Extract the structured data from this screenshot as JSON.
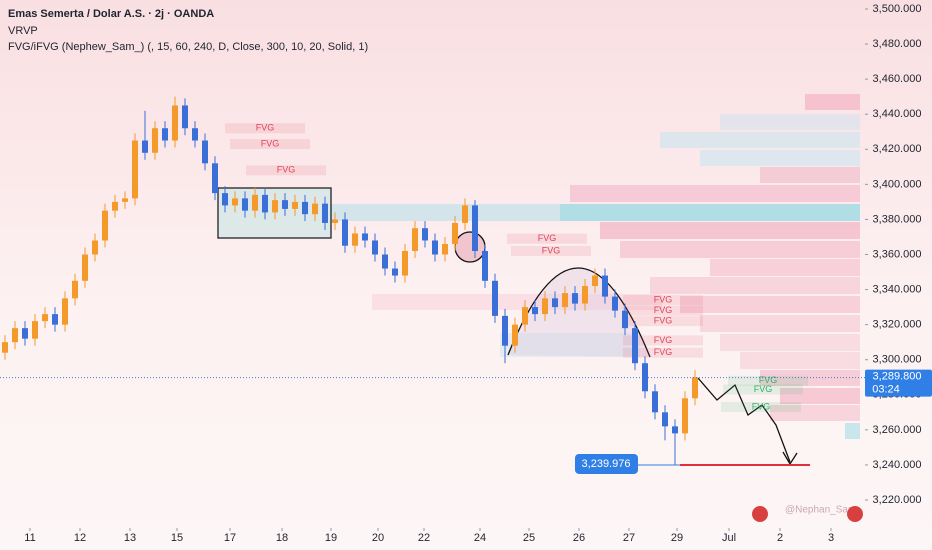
{
  "chart_data": {
    "type": "candlestick",
    "title": "Emas Semerta / Dolar A.S. · 2j · OANDA",
    "indicators": [
      "VRVP",
      "FVG/iFVG (Nephew_Sam_) (, 15, 60, 240, D, Close, 300, 10, 20, Solid, 1)"
    ],
    "up_color": "#f39a2b",
    "down_color": "#3a6fd8",
    "open": [
      3304,
      3310,
      3318,
      3312,
      3322,
      3326,
      3320,
      3335,
      3345,
      3360,
      3368,
      3385,
      3390,
      3392,
      3425,
      3418,
      3432,
      3425,
      3445,
      3432,
      3425,
      3412,
      3395,
      3388,
      3392,
      3385,
      3394,
      3384,
      3391,
      3386,
      3390,
      3383,
      3389,
      3378,
      3380,
      3365,
      3372,
      3368,
      3360,
      3352,
      3348,
      3362,
      3375,
      3368,
      3360,
      3366,
      3378,
      3388,
      3362,
      3345,
      3325,
      3308,
      3320,
      3330,
      3326,
      3335,
      3330,
      3338,
      3332,
      3342,
      3348,
      3336,
      3328,
      3318,
      3298,
      3282,
      3270,
      3262,
      3258,
      3278
    ],
    "high": [
      3314,
      3322,
      3322,
      3326,
      3330,
      3330,
      3339,
      3349,
      3364,
      3372,
      3389,
      3394,
      3396,
      3429,
      3442,
      3436,
      3436,
      3450,
      3449,
      3436,
      3429,
      3416,
      3399,
      3396,
      3396,
      3398,
      3398,
      3395,
      3395,
      3394,
      3394,
      3393,
      3393,
      3384,
      3384,
      3376,
      3376,
      3372,
      3364,
      3356,
      3366,
      3379,
      3379,
      3372,
      3370,
      3382,
      3392,
      3391,
      3366,
      3349,
      3329,
      3324,
      3334,
      3334,
      3339,
      3339,
      3342,
      3342,
      3346,
      3352,
      3352,
      3340,
      3332,
      3322,
      3302,
      3286,
      3274,
      3266,
      3282,
      3294
    ],
    "low": [
      3300,
      3306,
      3308,
      3308,
      3318,
      3316,
      3316,
      3331,
      3341,
      3356,
      3364,
      3381,
      3386,
      3388,
      3414,
      3414,
      3421,
      3421,
      3428,
      3421,
      3408,
      3391,
      3384,
      3384,
      3381,
      3381,
      3380,
      3380,
      3382,
      3382,
      3379,
      3379,
      3374,
      3374,
      3361,
      3361,
      3364,
      3356,
      3348,
      3344,
      3344,
      3358,
      3364,
      3356,
      3356,
      3362,
      3374,
      3358,
      3341,
      3321,
      3298,
      3304,
      3316,
      3322,
      3322,
      3326,
      3326,
      3328,
      3328,
      3338,
      3332,
      3324,
      3314,
      3294,
      3278,
      3266,
      3254,
      3240,
      3254,
      3274
    ],
    "close": [
      3310,
      3318,
      3312,
      3322,
      3326,
      3320,
      3335,
      3345,
      3360,
      3368,
      3385,
      3390,
      3392,
      3425,
      3418,
      3432,
      3425,
      3445,
      3432,
      3425,
      3412,
      3395,
      3388,
      3392,
      3385,
      3394,
      3384,
      3391,
      3386,
      3390,
      3383,
      3389,
      3378,
      3380,
      3365,
      3372,
      3368,
      3360,
      3352,
      3348,
      3362,
      3375,
      3368,
      3360,
      3366,
      3378,
      3388,
      3362,
      3345,
      3325,
      3308,
      3320,
      3330,
      3326,
      3335,
      3330,
      3338,
      3332,
      3342,
      3348,
      3336,
      3328,
      3318,
      3298,
      3282,
      3270,
      3262,
      3258,
      3278,
      3290
    ],
    "xlim": [
      0,
      86.5
    ],
    "xticks": [
      {
        "value": 3,
        "label": "11"
      },
      {
        "value": 8,
        "label": "12"
      },
      {
        "value": 13,
        "label": "13"
      },
      {
        "value": 17.7,
        "label": "15"
      },
      {
        "value": 23,
        "label": "17"
      },
      {
        "value": 28.2,
        "label": "18"
      },
      {
        "value": 33.1,
        "label": "19"
      },
      {
        "value": 37.8,
        "label": "20"
      },
      {
        "value": 42.4,
        "label": "22"
      },
      {
        "value": 48,
        "label": "24"
      },
      {
        "value": 52.9,
        "label": "25"
      },
      {
        "value": 57.9,
        "label": "26"
      },
      {
        "value": 62.9,
        "label": "27"
      },
      {
        "value": 67.7,
        "label": "29"
      },
      {
        "value": 72.9,
        "label": "Jul"
      },
      {
        "value": 78,
        "label": "2"
      },
      {
        "value": 83.1,
        "label": "3"
      }
    ],
    "ylim": [
      3220,
      3500
    ],
    "yticks": [
      {
        "value": 3220,
        "label": "3,220.000"
      },
      {
        "value": 3240,
        "label": "3,240.000"
      },
      {
        "value": 3260,
        "label": "3,260.000"
      },
      {
        "value": 3280,
        "label": "3,280.000"
      },
      {
        "value": 3300,
        "label": "3,300.000"
      },
      {
        "value": 3320,
        "label": "3,320.000"
      },
      {
        "value": 3340,
        "label": "3,340.000"
      },
      {
        "value": 3360,
        "label": "3,360.000"
      },
      {
        "value": 3380,
        "label": "3,380.000"
      },
      {
        "value": 3400,
        "label": "3,400.000"
      },
      {
        "value": 3420,
        "label": "3,420.000"
      },
      {
        "value": 3440,
        "label": "3,440.000"
      },
      {
        "value": 3460,
        "label": "3,460.000"
      },
      {
        "value": 3480,
        "label": "3,480.000"
      },
      {
        "value": 3500,
        "label": "3,500.000"
      }
    ],
    "last_price": {
      "value": 3289.8,
      "label": "3,289.800",
      "countdown": "03:24"
    },
    "low_marker": {
      "value": 3239.976,
      "label": "3,239.976"
    },
    "annotations": [
      {
        "text": "FVG",
        "x": 26.5,
        "y": 3432,
        "color": "#e0435a"
      },
      {
        "text": "FVG",
        "x": 27,
        "y": 3423,
        "color": "#e0435a"
      },
      {
        "text": "FVG",
        "x": 28.6,
        "y": 3408,
        "color": "#e0435a"
      },
      {
        "text": "FVG",
        "x": 54.7,
        "y": 3369,
        "color": "#e0435a"
      },
      {
        "text": "FVG",
        "x": 55.1,
        "y": 3362,
        "color": "#e0435a"
      },
      {
        "text": "FVG",
        "x": 66.3,
        "y": 3334,
        "color": "#e0435a"
      },
      {
        "text": "FVG",
        "x": 66.3,
        "y": 3328,
        "color": "#e0435a"
      },
      {
        "text": "FVG",
        "x": 66.3,
        "y": 3322,
        "color": "#e0435a"
      },
      {
        "text": "FVG",
        "x": 66.3,
        "y": 3311,
        "color": "#e0435a"
      },
      {
        "text": "FVG",
        "x": 66.3,
        "y": 3304,
        "color": "#e0435a"
      },
      {
        "text": "FVG",
        "x": 76.8,
        "y": 3288,
        "color": "#2fb36b"
      },
      {
        "text": "FVG",
        "x": 76.3,
        "y": 3283,
        "color": "#2fb36b"
      },
      {
        "text": "FVG",
        "x": 76.1,
        "y": 3273,
        "color": "#2fb36b"
      }
    ],
    "watermark": "@Nephan_Sam_"
  }
}
